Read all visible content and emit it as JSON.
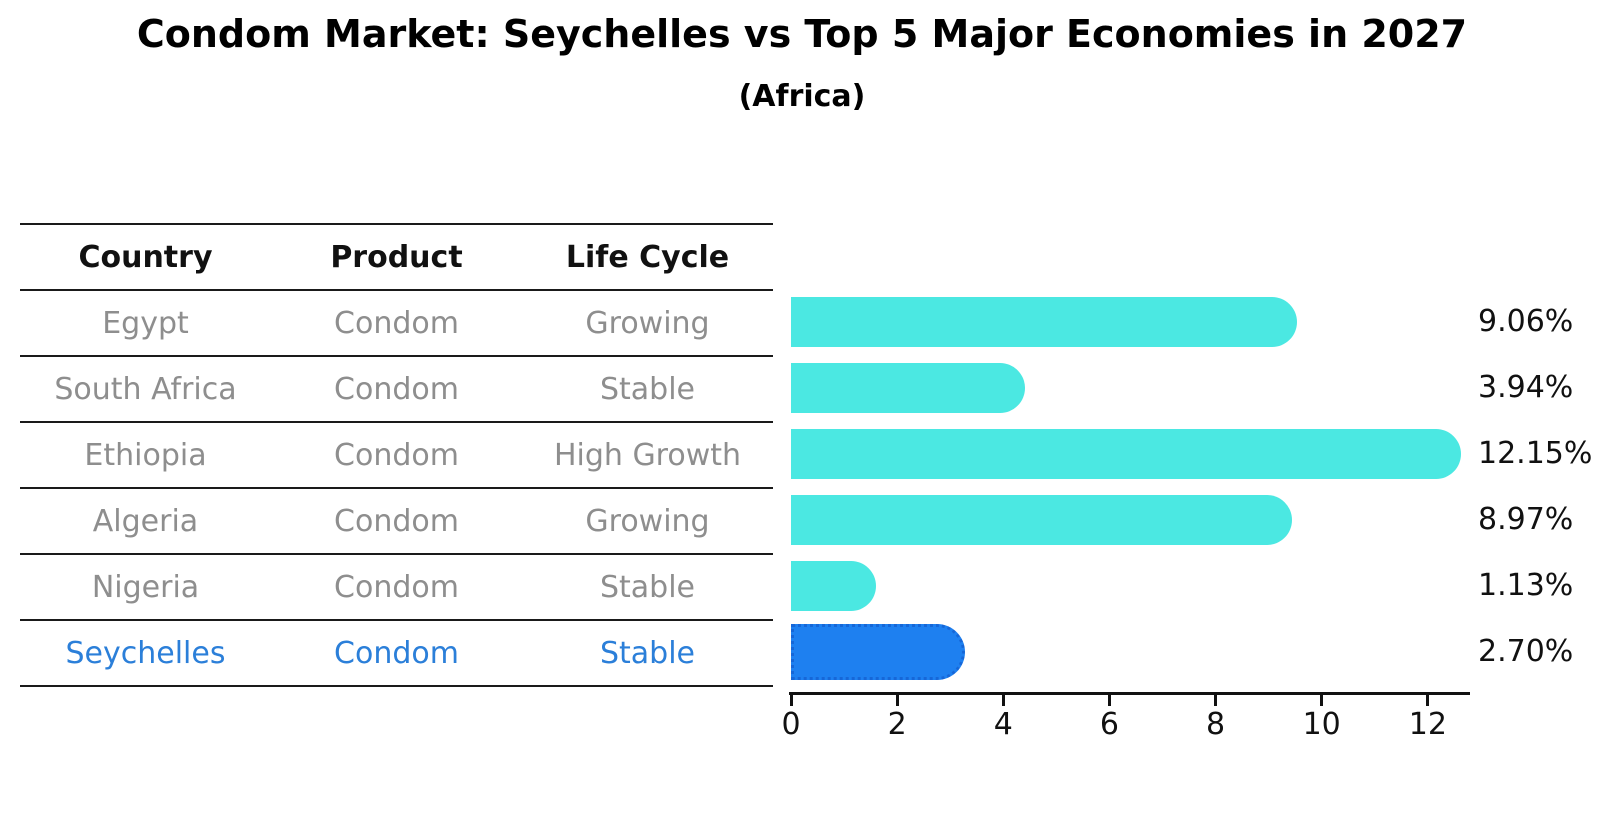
{
  "chart_data": {
    "type": "bar",
    "orientation": "horizontal",
    "title": "Condom Market: Seychelles vs Top 5 Major Economies in 2027",
    "subtitle": "(Africa)",
    "categories": [
      "Egypt",
      "South Africa",
      "Ethiopia",
      "Algeria",
      "Nigeria",
      "Seychelles"
    ],
    "values": [
      9.06,
      3.94,
      12.15,
      8.97,
      1.13,
      2.7
    ],
    "value_labels": [
      "9.06%",
      "3.94%",
      "12.15%",
      "8.97%",
      "1.13%",
      "2.70%"
    ],
    "x_ticks": [
      0,
      2,
      4,
      6,
      8,
      10,
      12
    ],
    "xlim": [
      0,
      12.8
    ],
    "grid": false,
    "legend": "none",
    "highlight_index": 5,
    "colors": {
      "bar": "#4be8e2",
      "highlight_bar": "#1e80f0",
      "highlight_border": "#1667d8",
      "axis": "#111111",
      "value_label": "#111111"
    }
  },
  "table": {
    "headers": [
      "Country",
      "Product",
      "Life Cycle"
    ],
    "rows": [
      {
        "country": "Egypt",
        "product": "Condom",
        "life_cycle": "Growing",
        "highlight": false
      },
      {
        "country": "South Africa",
        "product": "Condom",
        "life_cycle": "Stable",
        "highlight": false
      },
      {
        "country": "Ethiopia",
        "product": "Condom",
        "life_cycle": "High Growth",
        "highlight": false
      },
      {
        "country": "Algeria",
        "product": "Condom",
        "life_cycle": "Growing",
        "highlight": false
      },
      {
        "country": "Nigeria",
        "product": "Condom",
        "life_cycle": "Stable",
        "highlight": false
      },
      {
        "country": "Seychelles",
        "product": "Condom",
        "life_cycle": "Stable",
        "highlight": true
      }
    ],
    "text_color": "#8e8e8e",
    "highlight_text_color": "#2b7fd9",
    "header_text_color": "#111111"
  }
}
